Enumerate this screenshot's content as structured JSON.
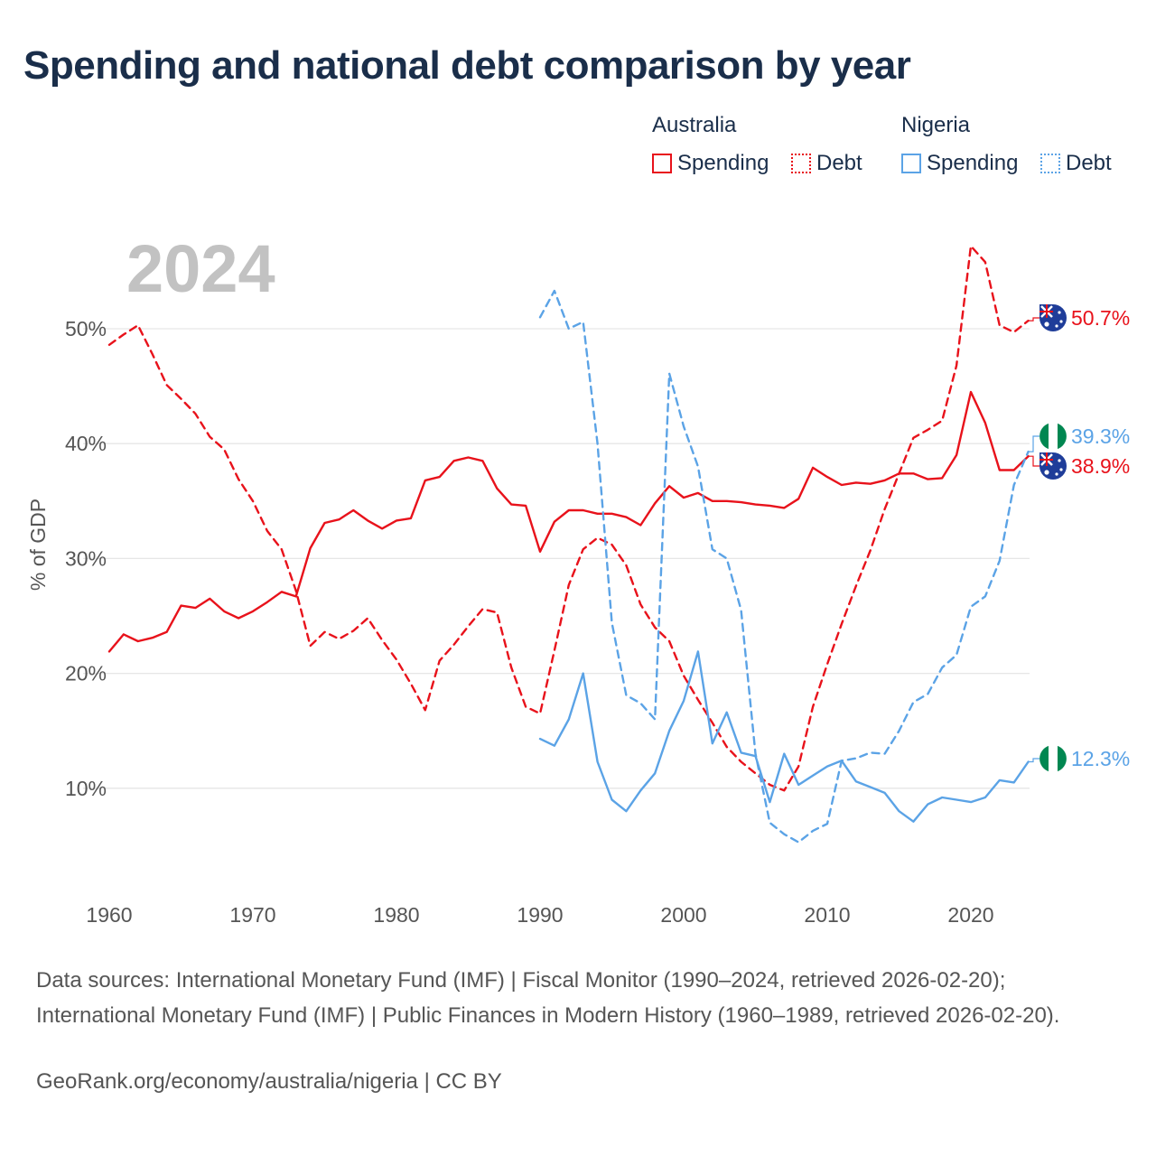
{
  "title": "Spending and national debt comparison by year",
  "legend": {
    "groups": [
      {
        "country": "Australia",
        "items": [
          {
            "label": "Spending",
            "style": "solid"
          },
          {
            "label": "Debt",
            "style": "dotted"
          }
        ],
        "color": "#e8121b"
      },
      {
        "country": "Nigeria",
        "items": [
          {
            "label": "Spending",
            "style": "solid"
          },
          {
            "label": "Debt",
            "style": "dotted"
          }
        ],
        "color": "#5ba3e6"
      }
    ]
  },
  "colors": {
    "australia": "#e8121b",
    "nigeria": "#5ba3e6",
    "grid": "#e6e6e6",
    "axis_text": "#555555",
    "year_watermark": "#c2c2c2"
  },
  "sources": "Data sources: International Monetary Fund (IMF) | Fiscal Monitor (1990–2024, retrieved 2026-02-20); International Monetary Fund (IMF) | Public Finances in Modern History (1960–1989, retrieved 2026-02-20).",
  "credit": "GeoRank.org/economy/australia/nigeria | CC BY",
  "chart_data": {
    "type": "line",
    "title": "Spending and national debt comparison by year",
    "current_year": "2024",
    "ylabel": "% of GDP",
    "xlabel": "",
    "xlim": [
      1960,
      2024
    ],
    "ylim": [
      0,
      60
    ],
    "x_ticks": [
      1960,
      1970,
      1980,
      1990,
      2000,
      2010,
      2020
    ],
    "y_ticks": [
      10,
      20,
      30,
      40,
      50
    ],
    "y_tick_labels": [
      "10%",
      "20%",
      "30%",
      "40%",
      "50%"
    ],
    "end_labels": [
      {
        "series": "Australia Debt",
        "text": "50.7%",
        "icon": "australia-flag-icon"
      },
      {
        "series": "Nigeria Debt",
        "text": "39.3%",
        "icon": "nigeria-flag-icon"
      },
      {
        "series": "Australia Spending",
        "text": "38.9%",
        "icon": "australia-flag-icon"
      },
      {
        "series": "Nigeria Spending",
        "text": "12.3%",
        "icon": "nigeria-flag-icon"
      }
    ],
    "series": [
      {
        "name": "Australia Spending",
        "country": "australia",
        "dash": false,
        "start": 1960,
        "values": [
          21.9,
          23.4,
          22.8,
          23.1,
          23.6,
          25.9,
          25.7,
          26.5,
          25.4,
          24.8,
          25.4,
          26.2,
          27.1,
          26.7,
          30.9,
          33.1,
          33.4,
          34.2,
          33.3,
          32.6,
          33.3,
          33.5,
          36.8,
          37.1,
          38.5,
          38.8,
          38.5,
          36.1,
          34.7,
          34.6,
          30.6,
          33.2,
          34.2,
          34.2,
          33.9,
          33.9,
          33.6,
          32.9,
          34.8,
          36.3,
          35.3,
          35.7,
          35.0,
          35.0,
          34.9,
          34.7,
          34.6,
          34.4,
          35.2,
          37.9,
          37.1,
          36.4,
          36.6,
          36.5,
          36.8,
          37.4,
          37.4,
          36.9,
          37.0,
          39.0,
          44.5,
          41.8,
          37.7,
          37.7,
          38.9
        ]
      },
      {
        "name": "Australia Debt",
        "country": "australia",
        "dash": true,
        "start": 1960,
        "values": [
          48.6,
          49.5,
          50.3,
          47.8,
          45.1,
          43.9,
          42.6,
          40.6,
          39.5,
          36.9,
          35.0,
          32.4,
          30.8,
          27.2,
          22.4,
          23.6,
          23.0,
          23.7,
          24.8,
          22.9,
          21.2,
          19.1,
          16.8,
          21.1,
          22.5,
          24.1,
          25.6,
          25.3,
          20.5,
          17.1,
          16.5,
          22.0,
          27.7,
          30.8,
          31.8,
          31.2,
          29.4,
          26.0,
          24.0,
          22.8,
          19.8,
          17.7,
          15.7,
          13.6,
          12.3,
          11.3,
          10.3,
          9.8,
          11.9,
          17.1,
          20.8,
          24.3,
          27.6,
          30.7,
          34.3,
          37.4,
          40.5,
          41.2,
          42.0,
          46.8,
          57.2,
          55.8,
          50.3,
          49.7,
          50.7
        ]
      },
      {
        "name": "Nigeria Spending",
        "country": "nigeria",
        "dash": false,
        "start": 1990,
        "values": [
          14.3,
          13.7,
          16.0,
          20.0,
          12.3,
          9.0,
          8.0,
          9.8,
          11.3,
          15.0,
          17.6,
          21.9,
          13.9,
          16.6,
          13.1,
          12.8,
          8.8,
          13.0,
          10.3,
          11.1,
          11.9,
          12.4,
          10.6,
          10.1,
          9.6,
          8.0,
          7.1,
          8.6,
          9.2,
          9.0,
          8.8,
          9.2,
          10.7,
          10.5,
          12.3
        ]
      },
      {
        "name": "Nigeria Debt",
        "country": "nigeria",
        "dash": true,
        "start": 1990,
        "values": [
          51.0,
          53.3,
          50.0,
          50.6,
          40.0,
          24.4,
          18.1,
          17.4,
          16.0,
          46.1,
          41.5,
          38.0,
          30.8,
          30.0,
          25.5,
          13.0,
          7.0,
          6.0,
          5.3,
          6.3,
          6.9,
          12.4,
          12.6,
          13.1,
          13.0,
          15.0,
          17.5,
          18.2,
          20.5,
          21.6,
          25.8,
          26.7,
          29.8,
          36.4,
          39.3
        ]
      }
    ]
  }
}
